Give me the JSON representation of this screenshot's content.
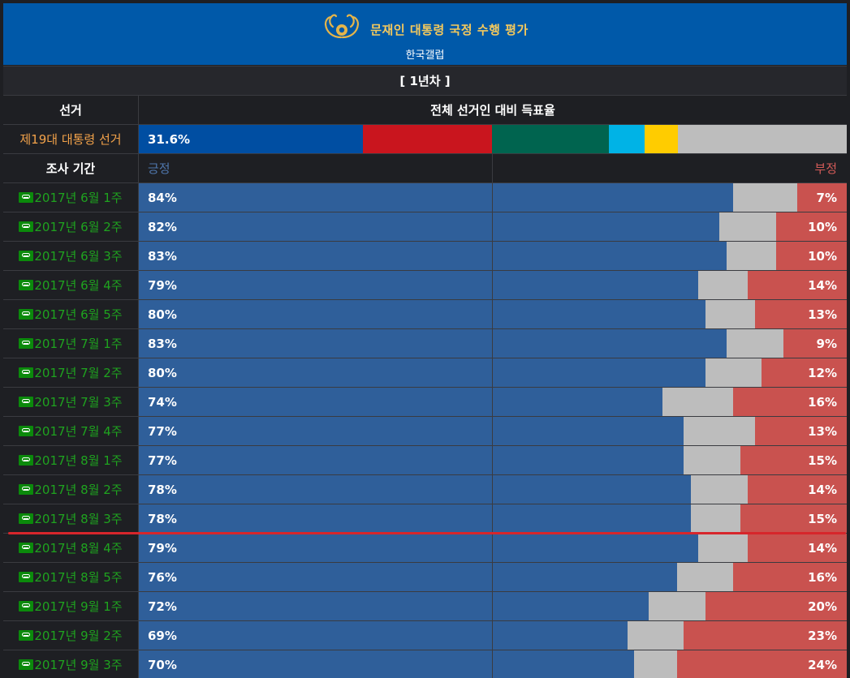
{
  "header": {
    "title": "문재인 대통령 국정 수행 평가",
    "subtitle": "한국갤럽",
    "accent": "#0059a9",
    "title_color": "#f4c95d",
    "emblem_icon": "phoenix-emblem-icon"
  },
  "table": {
    "year_label": "[ 1년차 ]",
    "col_election": "선거",
    "col_vote_share": "전체 선거인 대비 득표율",
    "election_name": "제19대 대통령 선거",
    "election_value": "31.6%",
    "election_segments": [
      {
        "color": "#004ea2",
        "share": 0.316
      },
      {
        "color": "#c9151e",
        "share": 0.183
      },
      {
        "color": "#00644f",
        "share": 0.165
      },
      {
        "color": "#00b3e6",
        "share": 0.051
      },
      {
        "color": "#ffcc00",
        "share": 0.047
      },
      {
        "color": "#bdbdbd",
        "share": 0.238
      }
    ],
    "col_period": "조사 기간",
    "label_positive": "긍정",
    "label_negative": "부정",
    "link_icon": "link-icon"
  },
  "chart_data": {
    "type": "bar",
    "stacked": true,
    "orientation": "horizontal",
    "title": "문재인 대통령 국정 수행 평가",
    "subtitle": "한국갤럽",
    "categories": [
      "2017년 6월 1주",
      "2017년 6월 2주",
      "2017년 6월 3주",
      "2017년 6월 4주",
      "2017년 6월 5주",
      "2017년 7월 1주",
      "2017년 7월 2주",
      "2017년 7월 3주",
      "2017년 7월 4주",
      "2017년 8월 1주",
      "2017년 8월 2주",
      "2017년 8월 3주",
      "2017년 8월 4주",
      "2017년 8월 5주",
      "2017년 9월 1주",
      "2017년 9월 2주",
      "2017년 9월 3주"
    ],
    "series": [
      {
        "name": "긍정",
        "color": "#2f5f9a",
        "values": [
          84,
          82,
          83,
          79,
          80,
          83,
          80,
          74,
          77,
          77,
          78,
          78,
          79,
          76,
          72,
          69,
          70
        ]
      },
      {
        "name": "부정",
        "color": "#c9524f",
        "values": [
          7,
          10,
          10,
          14,
          13,
          9,
          12,
          16,
          13,
          15,
          14,
          15,
          14,
          16,
          20,
          23,
          24
        ]
      }
    ],
    "remainder_color": "#bdbdbd",
    "xlim": [
      0,
      100
    ],
    "value_suffix": "%"
  }
}
